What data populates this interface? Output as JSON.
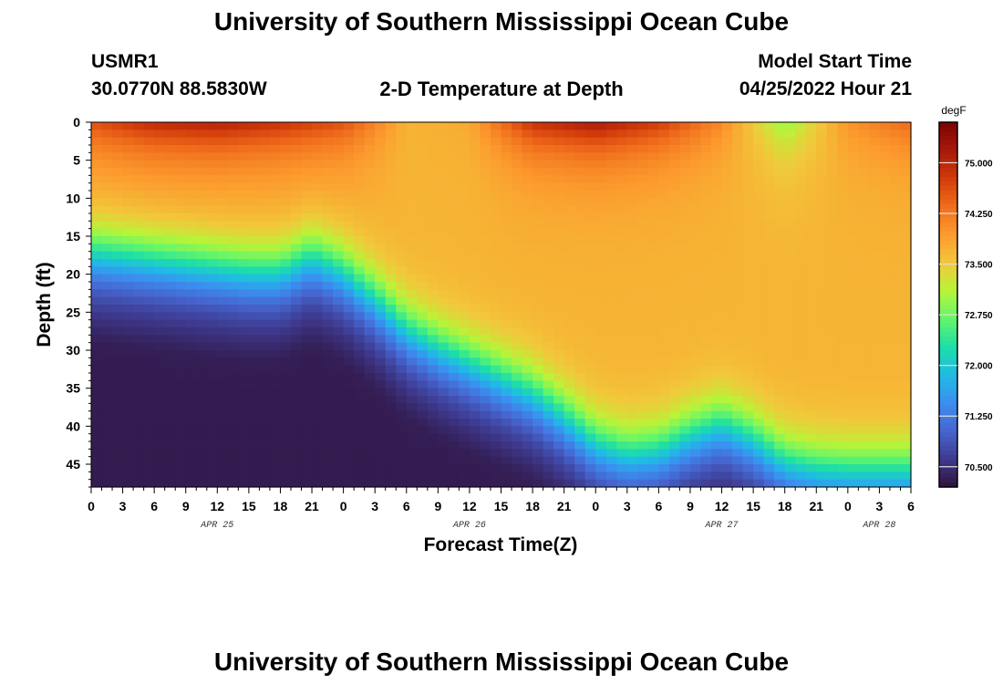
{
  "header": {
    "title": "University of Southern Mississippi Ocean Cube",
    "station": "USMR1",
    "coords": "30.0770N  88.5830W",
    "subtitle": "2-D Temperature at Depth",
    "model_label": "Model Start Time",
    "model_time": "04/25/2022 Hour 21"
  },
  "footer": {
    "title": "University of Southern Mississippi Ocean Cube"
  },
  "colors": {
    "colormap": [
      "#30123b",
      "#3e3a8f",
      "#4666d0",
      "#3b8ff0",
      "#1fbbe5",
      "#1ddfa5",
      "#64f66a",
      "#b9f438",
      "#f2c73a",
      "#fc9b2e",
      "#f06d1c",
      "#d23b0a",
      "#a8180a",
      "#7a0403"
    ]
  },
  "chart_data": {
    "type": "heatmap",
    "title": "2-D Temperature at Depth",
    "xlabel": "Forecast Time(Z)",
    "ylabel": "Depth (ft)",
    "xlim_hours": [
      0,
      78
    ],
    "ylim_ft": [
      0,
      48
    ],
    "x_ticks": [
      "0",
      "3",
      "6",
      "9",
      "12",
      "15",
      "18",
      "21",
      "0",
      "3",
      "6",
      "9",
      "12",
      "15",
      "18",
      "21",
      "0",
      "3",
      "6",
      "9",
      "12",
      "15",
      "18",
      "21",
      "0",
      "3",
      "6"
    ],
    "y_ticks": [
      "0",
      "5",
      "10",
      "15",
      "20",
      "25",
      "30",
      "35",
      "40",
      "45"
    ],
    "date_labels": [
      {
        "label": "APR 25",
        "hour": 12
      },
      {
        "label": "APR 26",
        "hour": 36
      },
      {
        "label": "APR 27",
        "hour": 60
      },
      {
        "label": "APR 28",
        "hour": 75
      }
    ],
    "colorbar": {
      "unit": "degF",
      "min": 70.2,
      "max": 75.6,
      "ticks": [
        "70.500",
        "71.250",
        "72.000",
        "72.750",
        "73.500",
        "74.250",
        "75.000"
      ]
    },
    "thermocline_depth_ft": {
      "hours": [
        0,
        3,
        6,
        9,
        12,
        15,
        18,
        21,
        24,
        27,
        30,
        33,
        36,
        39,
        42,
        45,
        48,
        51,
        54,
        57,
        60,
        63,
        66,
        69,
        72,
        75,
        78
      ],
      "values": [
        17,
        17.5,
        18,
        18.5,
        19,
        19.5,
        19.5,
        17.5,
        19.5,
        23,
        27,
        29.5,
        31.5,
        33.5,
        35.5,
        38.5,
        42,
        43.5,
        43,
        41,
        39.5,
        41.5,
        44.5,
        45.5,
        45.8,
        45.8,
        45.8
      ]
    },
    "surface_temperature_degF": {
      "hours": [
        0,
        6,
        12,
        18,
        24,
        30,
        36,
        42,
        48,
        54,
        60,
        66,
        72,
        78
      ],
      "values": [
        74.6,
        75.0,
        75.1,
        74.9,
        74.6,
        73.7,
        73.8,
        74.9,
        75.2,
        74.8,
        74.1,
        72.9,
        74.0,
        74.4
      ]
    },
    "bottom_temperature_degF": 70.3,
    "warm_layer_temperature_degF": 73.7
  }
}
